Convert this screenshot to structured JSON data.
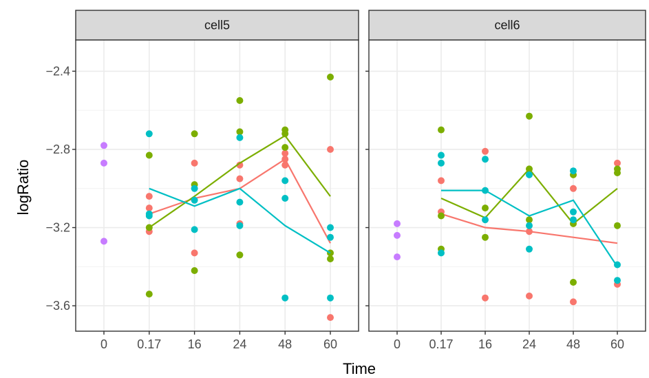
{
  "chart_data": {
    "type": "scatter",
    "facets": [
      "cell5",
      "cell6"
    ],
    "xlabel": "Time",
    "ylabel": "logRatio",
    "x_categories": [
      "0",
      "0.17",
      "16",
      "24",
      "48",
      "60"
    ],
    "y_ticks": [
      -2.4,
      -2.8,
      -3.2,
      -3.6
    ],
    "y_tick_labels": [
      "−2.4",
      "−2.8",
      "−3.2",
      "−3.6"
    ],
    "ylim": [
      -3.73,
      -2.24
    ],
    "grid": true,
    "legend": "none",
    "series": [
      {
        "color": "#F8766D",
        "points": {
          "cell5": [
            [
              1,
              -3.04
            ],
            [
              1,
              -3.1
            ],
            [
              1,
              -3.22
            ],
            [
              2,
              -2.87
            ],
            [
              2,
              -3.33
            ],
            [
              3,
              -2.88
            ],
            [
              3,
              -2.95
            ],
            [
              3,
              -3.18
            ],
            [
              4,
              -2.82
            ],
            [
              4,
              -2.85
            ],
            [
              4,
              -2.88
            ],
            [
              5,
              -2.8
            ],
            [
              5,
              -3.66
            ]
          ],
          "cell6": [
            [
              1,
              -2.96
            ],
            [
              1,
              -3.12
            ],
            [
              2,
              -2.81
            ],
            [
              2,
              -3.56
            ],
            [
              3,
              -3.22
            ],
            [
              3,
              -3.55
            ],
            [
              4,
              -3.0
            ],
            [
              4,
              -3.58
            ],
            [
              5,
              -2.87
            ],
            [
              5,
              -3.49
            ]
          ]
        },
        "line": {
          "cell5": [
            [
              1,
              -3.13
            ],
            [
              2,
              -3.05
            ],
            [
              3,
              -3.0
            ],
            [
              4,
              -2.85
            ],
            [
              5,
              -3.28
            ]
          ],
          "cell6": [
            [
              1,
              -3.13
            ],
            [
              2,
              -3.2
            ],
            [
              3,
              -3.22
            ],
            [
              4,
              -3.25
            ],
            [
              5,
              -3.28
            ]
          ]
        }
      },
      {
        "color": "#7CAE00",
        "points": {
          "cell5": [
            [
              1,
              -2.83
            ],
            [
              1,
              -3.2
            ],
            [
              1,
              -3.54
            ],
            [
              2,
              -2.72
            ],
            [
              2,
              -2.98
            ],
            [
              2,
              -3.42
            ],
            [
              3,
              -2.55
            ],
            [
              3,
              -2.71
            ],
            [
              3,
              -3.34
            ],
            [
              4,
              -2.7
            ],
            [
              4,
              -2.72
            ],
            [
              4,
              -2.79
            ],
            [
              5,
              -2.43
            ],
            [
              5,
              -3.33
            ],
            [
              5,
              -3.36
            ]
          ],
          "cell6": [
            [
              1,
              -2.7
            ],
            [
              1,
              -3.14
            ],
            [
              1,
              -3.31
            ],
            [
              2,
              -3.1
            ],
            [
              2,
              -3.25
            ],
            [
              3,
              -2.63
            ],
            [
              3,
              -2.9
            ],
            [
              3,
              -3.16
            ],
            [
              4,
              -2.93
            ],
            [
              4,
              -3.18
            ],
            [
              4,
              -3.48
            ],
            [
              5,
              -2.9
            ],
            [
              5,
              -2.92
            ],
            [
              5,
              -3.19
            ]
          ]
        },
        "line": {
          "cell5": [
            [
              1,
              -3.2
            ],
            [
              2,
              -3.04
            ],
            [
              3,
              -2.87
            ],
            [
              4,
              -2.73
            ],
            [
              5,
              -3.04
            ]
          ],
          "cell6": [
            [
              1,
              -3.05
            ],
            [
              2,
              -3.15
            ],
            [
              3,
              -2.9
            ],
            [
              4,
              -3.18
            ],
            [
              5,
              -3.0
            ]
          ]
        }
      },
      {
        "color": "#00BFC4",
        "points": {
          "cell5": [
            [
              1,
              -2.72
            ],
            [
              1,
              -3.13
            ],
            [
              1,
              -3.14
            ],
            [
              2,
              -3.0
            ],
            [
              2,
              -3.06
            ],
            [
              2,
              -3.21
            ],
            [
              3,
              -2.74
            ],
            [
              3,
              -3.07
            ],
            [
              3,
              -3.19
            ],
            [
              4,
              -2.96
            ],
            [
              4,
              -3.05
            ],
            [
              4,
              -3.56
            ],
            [
              5,
              -3.2
            ],
            [
              5,
              -3.25
            ],
            [
              5,
              -3.56
            ]
          ],
          "cell6": [
            [
              1,
              -2.83
            ],
            [
              1,
              -2.87
            ],
            [
              1,
              -3.33
            ],
            [
              2,
              -2.85
            ],
            [
              2,
              -3.01
            ],
            [
              2,
              -3.16
            ],
            [
              3,
              -2.93
            ],
            [
              3,
              -3.19
            ],
            [
              3,
              -3.31
            ],
            [
              4,
              -2.91
            ],
            [
              4,
              -3.12
            ],
            [
              4,
              -3.16
            ],
            [
              5,
              -3.39
            ],
            [
              5,
              -3.47
            ]
          ]
        },
        "line": {
          "cell5": [
            [
              1,
              -3.0
            ],
            [
              2,
              -3.09
            ],
            [
              3,
              -3.0
            ],
            [
              4,
              -3.19
            ],
            [
              5,
              -3.33
            ]
          ],
          "cell6": [
            [
              1,
              -3.01
            ],
            [
              2,
              -3.01
            ],
            [
              3,
              -3.14
            ],
            [
              4,
              -3.06
            ],
            [
              5,
              -3.4
            ]
          ]
        }
      },
      {
        "color": "#C77CFF",
        "points": {
          "cell5": [
            [
              0,
              -2.78
            ],
            [
              0,
              -2.87
            ],
            [
              0,
              -3.27
            ]
          ],
          "cell6": [
            [
              0,
              -3.18
            ],
            [
              0,
              -3.24
            ],
            [
              0,
              -3.35
            ]
          ]
        },
        "line": {
          "cell5": [],
          "cell6": []
        }
      }
    ]
  }
}
